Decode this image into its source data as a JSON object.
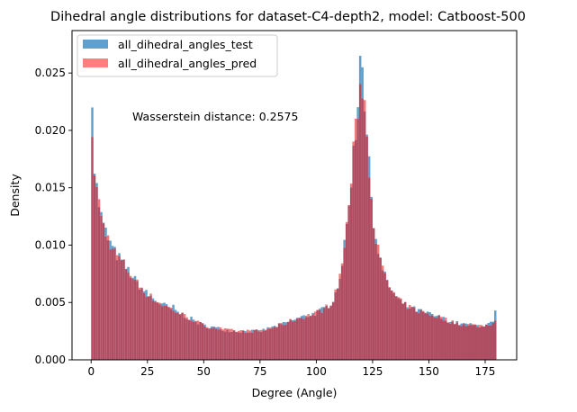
{
  "chart_data": {
    "type": "bar",
    "title": "Dihedral angle distributions for dataset-C4-depth2, model: Catboost-500",
    "xlabel": "Degree (Angle)",
    "ylabel": "Density",
    "xlim": [
      -8.5,
      189
    ],
    "ylim": [
      0,
      0.0287
    ],
    "grid": false,
    "legend_position": "top-left",
    "annotation": "Wasserstein distance: 0.2575",
    "x_ticks": [
      0,
      25,
      50,
      75,
      100,
      125,
      150,
      175
    ],
    "x_tick_labels": [
      "0",
      "25",
      "50",
      "75",
      "100",
      "125",
      "150",
      "175"
    ],
    "y_ticks": [
      0.0,
      0.005,
      0.01,
      0.015,
      0.02,
      0.025
    ],
    "y_tick_labels": [
      "0.000",
      "0.005",
      "0.010",
      "0.015",
      "0.020",
      "0.025"
    ],
    "bin_range": [
      0,
      180
    ],
    "series": [
      {
        "name": "all_dihedral_angles_test",
        "color": "#1f77b4",
        "opacity": 0.7
      },
      {
        "name": "all_dihedral_angles_pred",
        "color": "#ff0000",
        "opacity": 0.5
      }
    ],
    "overlap_color": "#b04d62",
    "density_profile": {
      "x": [
        0,
        0.5,
        1,
        2,
        3,
        4,
        5,
        7,
        10,
        15,
        20,
        25,
        30,
        35,
        40,
        45,
        50,
        55,
        60,
        65,
        70,
        75,
        80,
        85,
        90,
        95,
        100,
        103,
        106,
        108,
        110,
        112,
        114,
        116,
        117,
        118,
        119,
        120,
        121,
        122,
        123,
        124,
        125,
        126,
        128,
        130,
        133,
        136,
        140,
        145,
        150,
        155,
        160,
        165,
        170,
        175,
        178,
        180
      ],
      "y": [
        0.0195,
        0.0185,
        0.0175,
        0.0158,
        0.0142,
        0.013,
        0.012,
        0.0108,
        0.0095,
        0.0082,
        0.0068,
        0.0057,
        0.005,
        0.0045,
        0.004,
        0.0035,
        0.003,
        0.0028,
        0.0026,
        0.0025,
        0.0025,
        0.0025,
        0.0028,
        0.0031,
        0.0035,
        0.0038,
        0.0041,
        0.0044,
        0.0048,
        0.0055,
        0.0068,
        0.009,
        0.0125,
        0.017,
        0.019,
        0.021,
        0.023,
        0.0245,
        0.0235,
        0.021,
        0.018,
        0.0155,
        0.0132,
        0.0112,
        0.009,
        0.0075,
        0.0062,
        0.0053,
        0.0047,
        0.0043,
        0.004,
        0.0037,
        0.0033,
        0.0031,
        0.003,
        0.003,
        0.0032,
        0.0034
      ]
    },
    "test_spikes": [
      {
        "x": 0,
        "y": 0.022
      },
      {
        "x": 36,
        "y": 0.0048
      },
      {
        "x": 119,
        "y": 0.0265
      },
      {
        "x": 120,
        "y": 0.0255
      },
      {
        "x": 179,
        "y": 0.0043
      }
    ]
  }
}
